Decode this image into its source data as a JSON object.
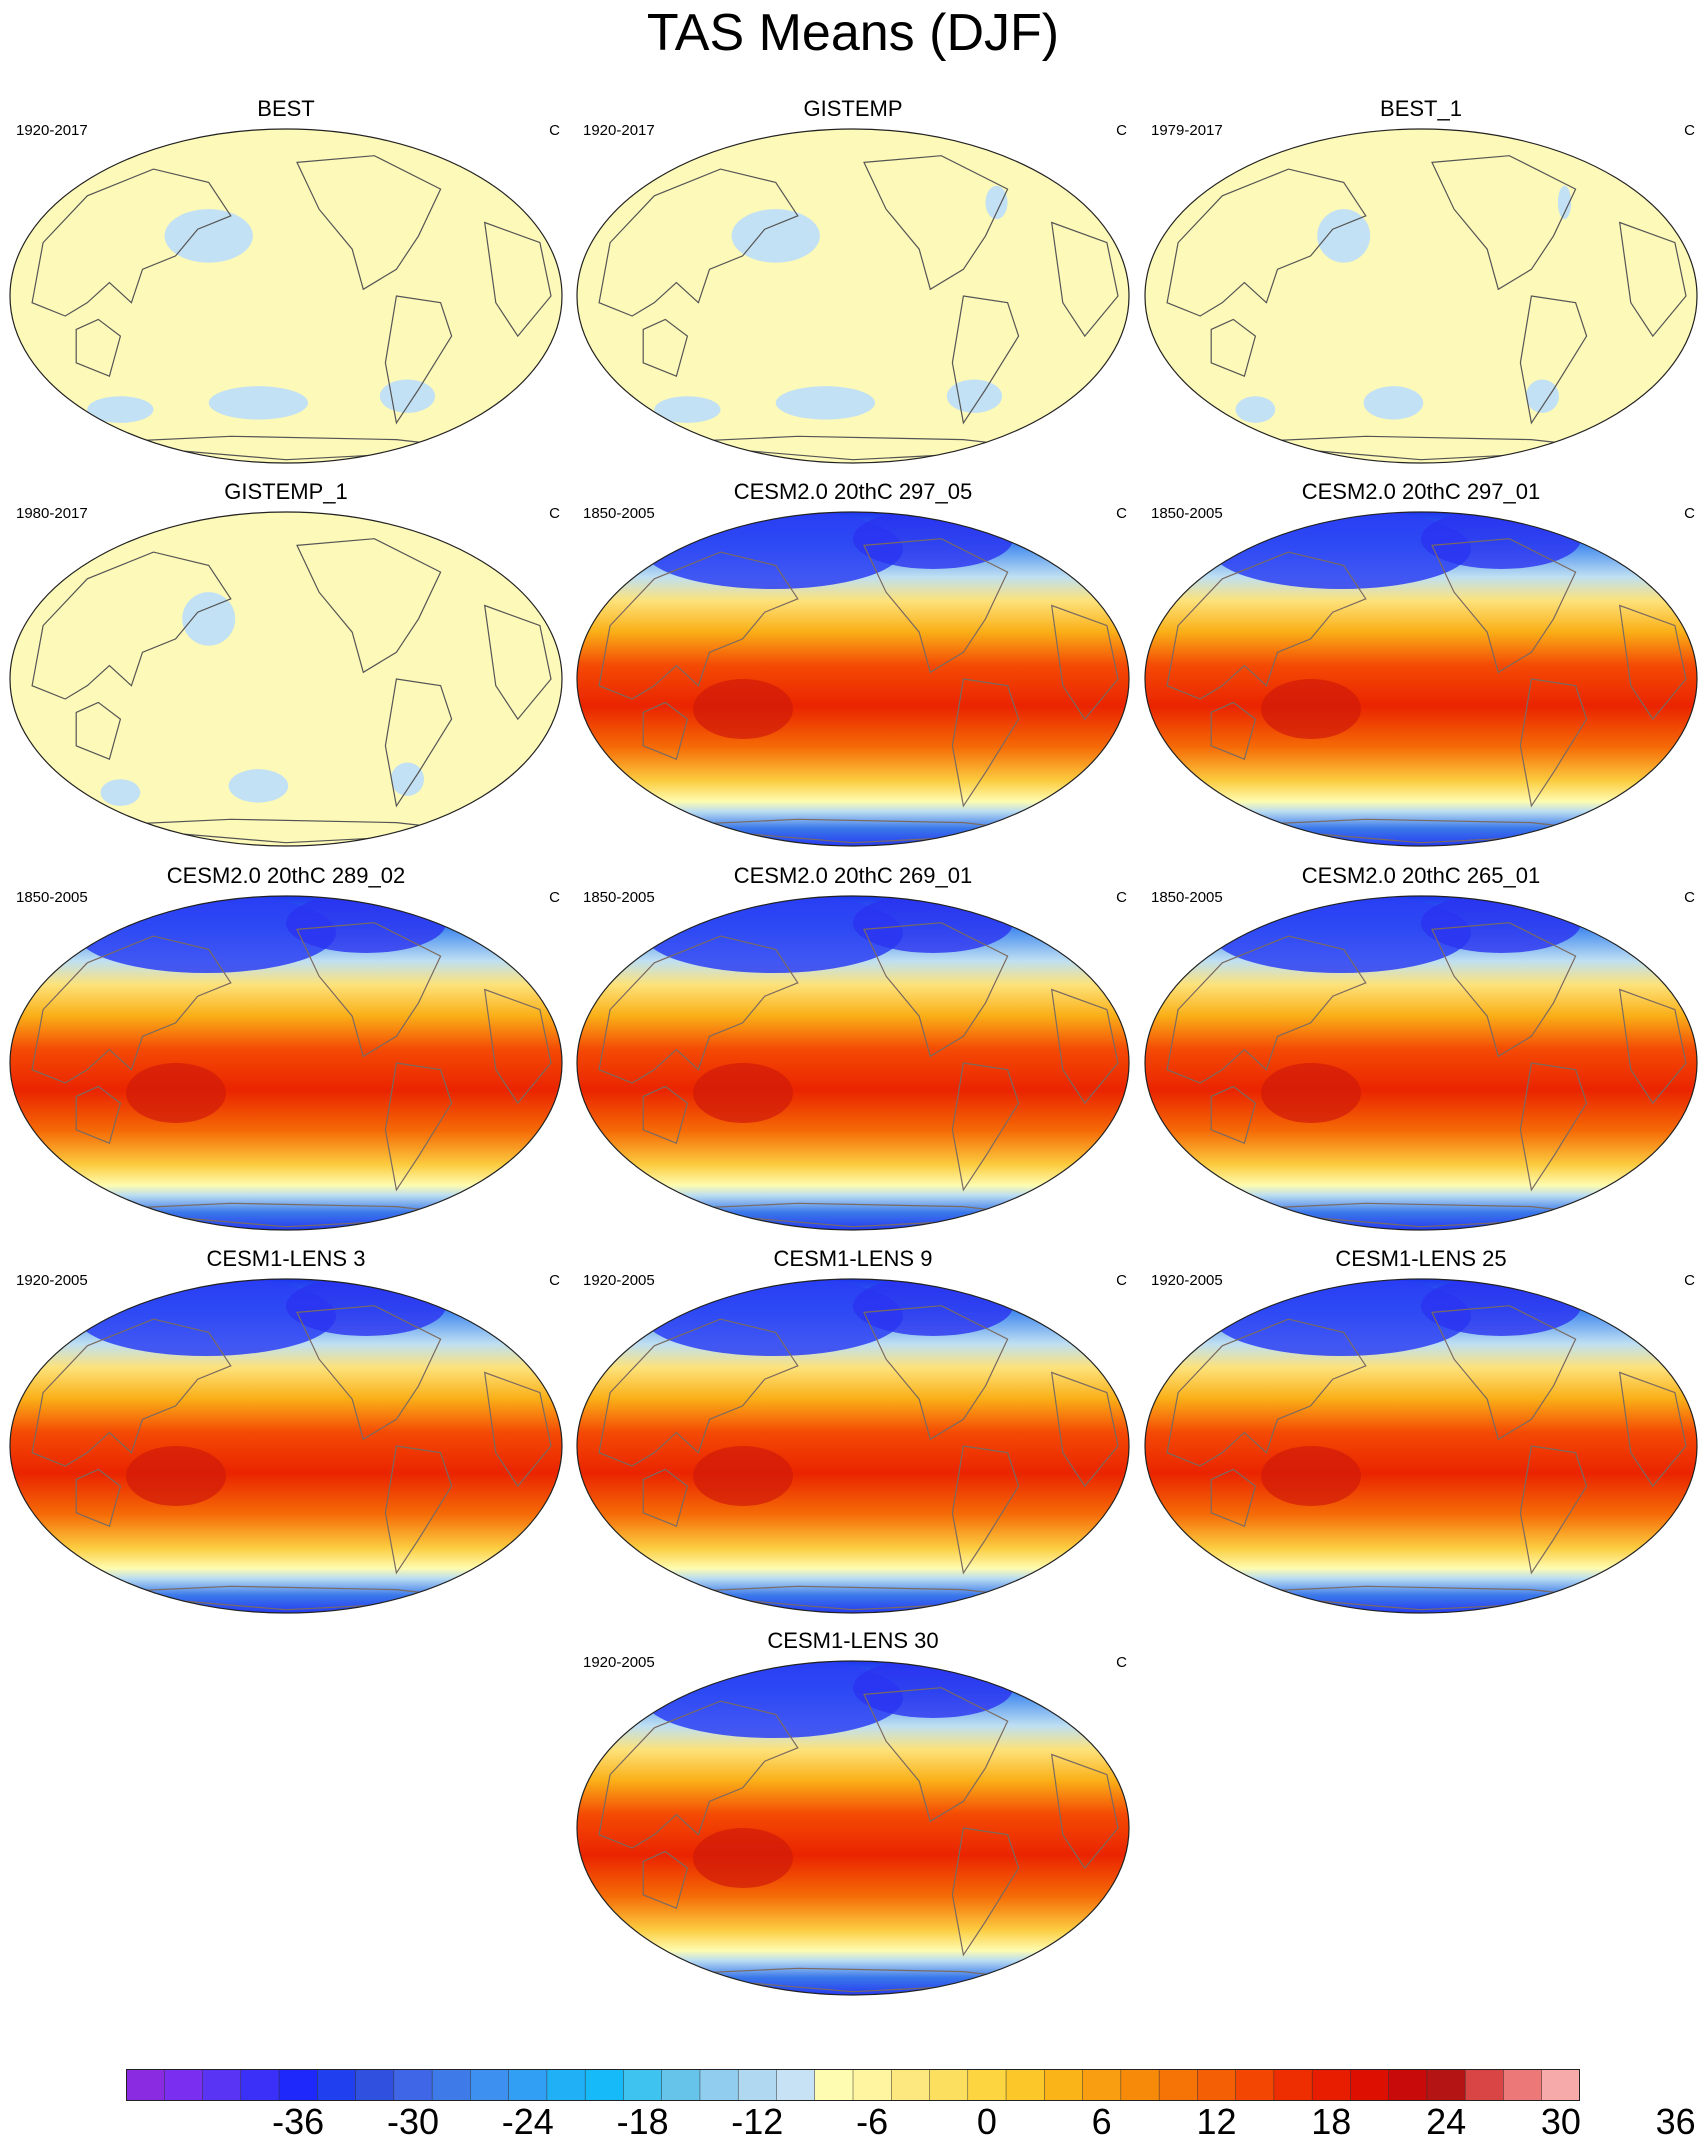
{
  "figure": {
    "title": "TAS Means (DJF)"
  },
  "panels": [
    {
      "title": "BEST",
      "years": "1920-2017",
      "units": "C",
      "kind": "obs"
    },
    {
      "title": "GISTEMP",
      "years": "1920-2017",
      "units": "C",
      "kind": "obs"
    },
    {
      "title": "BEST_1",
      "years": "1979-2017",
      "units": "C",
      "kind": "obs"
    },
    {
      "title": "GISTEMP_1",
      "years": "1980-2017",
      "units": "C",
      "kind": "obs"
    },
    {
      "title": "CESM2.0 20thC 297_05",
      "years": "1850-2005",
      "units": "C",
      "kind": "model"
    },
    {
      "title": "CESM2.0 20thC 297_01",
      "years": "1850-2005",
      "units": "C",
      "kind": "model"
    },
    {
      "title": "CESM2.0 20thC 289_02",
      "years": "1850-2005",
      "units": "C",
      "kind": "model"
    },
    {
      "title": "CESM2.0 20thC 269_01",
      "years": "1850-2005",
      "units": "C",
      "kind": "model"
    },
    {
      "title": "CESM2.0 20thC 265_01",
      "years": "1850-2005",
      "units": "C",
      "kind": "model"
    },
    {
      "title": "CESM1-LENS 3",
      "years": "1920-2005",
      "units": "C",
      "kind": "model"
    },
    {
      "title": "CESM1-LENS 9",
      "years": "1920-2005",
      "units": "C",
      "kind": "model"
    },
    {
      "title": "CESM1-LENS 25",
      "years": "1920-2005",
      "units": "C",
      "kind": "model"
    },
    {
      "title": "CESM1-LENS 30",
      "years": "1920-2005",
      "units": "C",
      "kind": "model"
    }
  ],
  "colorbar": {
    "colors": [
      "#8a2be2",
      "#7a2ff0",
      "#5a34f5",
      "#3a30f8",
      "#1e28fb",
      "#2040ef",
      "#3050e0",
      "#3f66e6",
      "#3f7be8",
      "#3d8ff0",
      "#31a0f4",
      "#1fb0f6",
      "#16baf8",
      "#3ec2f0",
      "#66c4ea",
      "#90cdee",
      "#b0d8f0",
      "#c6e2f4",
      "#fefcb0",
      "#fff5a0",
      "#fde880",
      "#fddf60",
      "#fcd540",
      "#fcc728",
      "#fab418",
      "#f99e10",
      "#f88a0a",
      "#f67406",
      "#f45e04",
      "#f24602",
      "#ee2e00",
      "#e81d00",
      "#dc0f00",
      "#c80a0a",
      "#b41414",
      "#d94545",
      "#ec7878",
      "#f7aaaa"
    ],
    "tick_labels": [
      "-36",
      "-30",
      "-24",
      "-18",
      "-12",
      "-6",
      "0",
      "6",
      "12",
      "18",
      "24",
      "30",
      "36"
    ]
  }
}
